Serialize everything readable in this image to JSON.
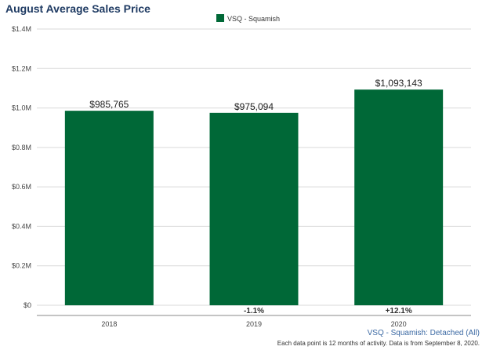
{
  "title": "August Average Sales Price",
  "chart_data": {
    "type": "bar",
    "title": "August Average Sales Price",
    "categories": [
      "2018",
      "2019",
      "2020"
    ],
    "series": [
      {
        "name": "VSQ - Squamish",
        "values": [
          985765,
          975094,
          1093143
        ],
        "color": "#006837"
      }
    ],
    "data_labels": [
      "$985,765",
      "$975,094",
      "$1,093,143"
    ],
    "change_labels": [
      "",
      "-1.1%",
      "+12.1%"
    ],
    "y_ticks": [
      "$0",
      "$0.2M",
      "$0.4M",
      "$0.6M",
      "$0.8M",
      "$1.0M",
      "$1.2M",
      "$1.4M"
    ],
    "ylim": [
      0,
      1400000
    ],
    "grid": true,
    "legend_position": "top-center"
  },
  "footer": {
    "series_note": "VSQ - Squamish: Detached (All)",
    "source_note": "Each data point is 12 months of activity. Data is from September 8, 2020."
  }
}
